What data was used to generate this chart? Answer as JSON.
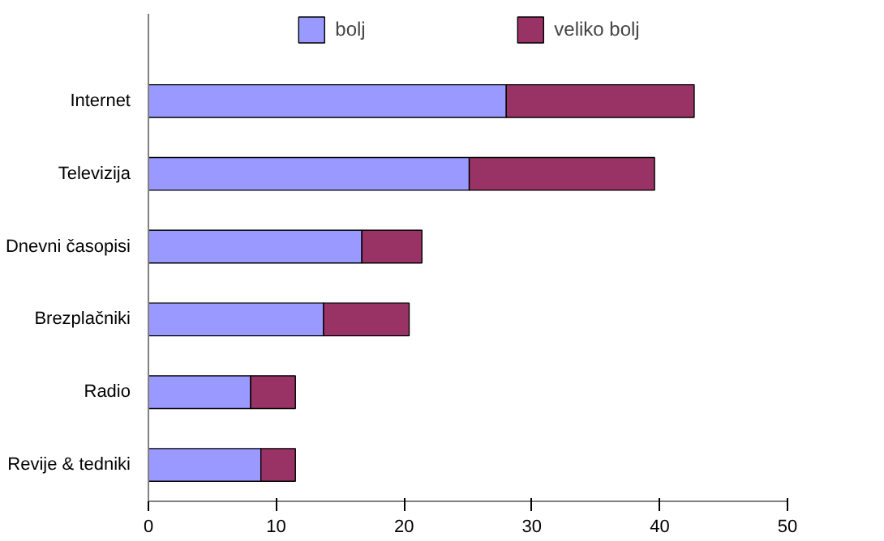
{
  "chart_data": {
    "type": "bar",
    "orientation": "horizontal",
    "stacked": true,
    "categories": [
      "Internet",
      "Televizija",
      "Dnevni časopisi",
      "Brezplačniki",
      "Radio",
      "Revije & tedniki"
    ],
    "series": [
      {
        "name": "bolj",
        "color": "#9999ff",
        "values": [
          28.0,
          25.1,
          16.7,
          13.7,
          8.0,
          8.8
        ]
      },
      {
        "name": "veliko bolj",
        "color": "#993366",
        "values": [
          14.7,
          14.5,
          4.7,
          6.7,
          3.5,
          2.7
        ]
      }
    ],
    "xlim": [
      0,
      50
    ],
    "xticks": [
      0,
      10,
      20,
      30,
      40,
      50
    ],
    "grid": false,
    "legend": "top"
  }
}
